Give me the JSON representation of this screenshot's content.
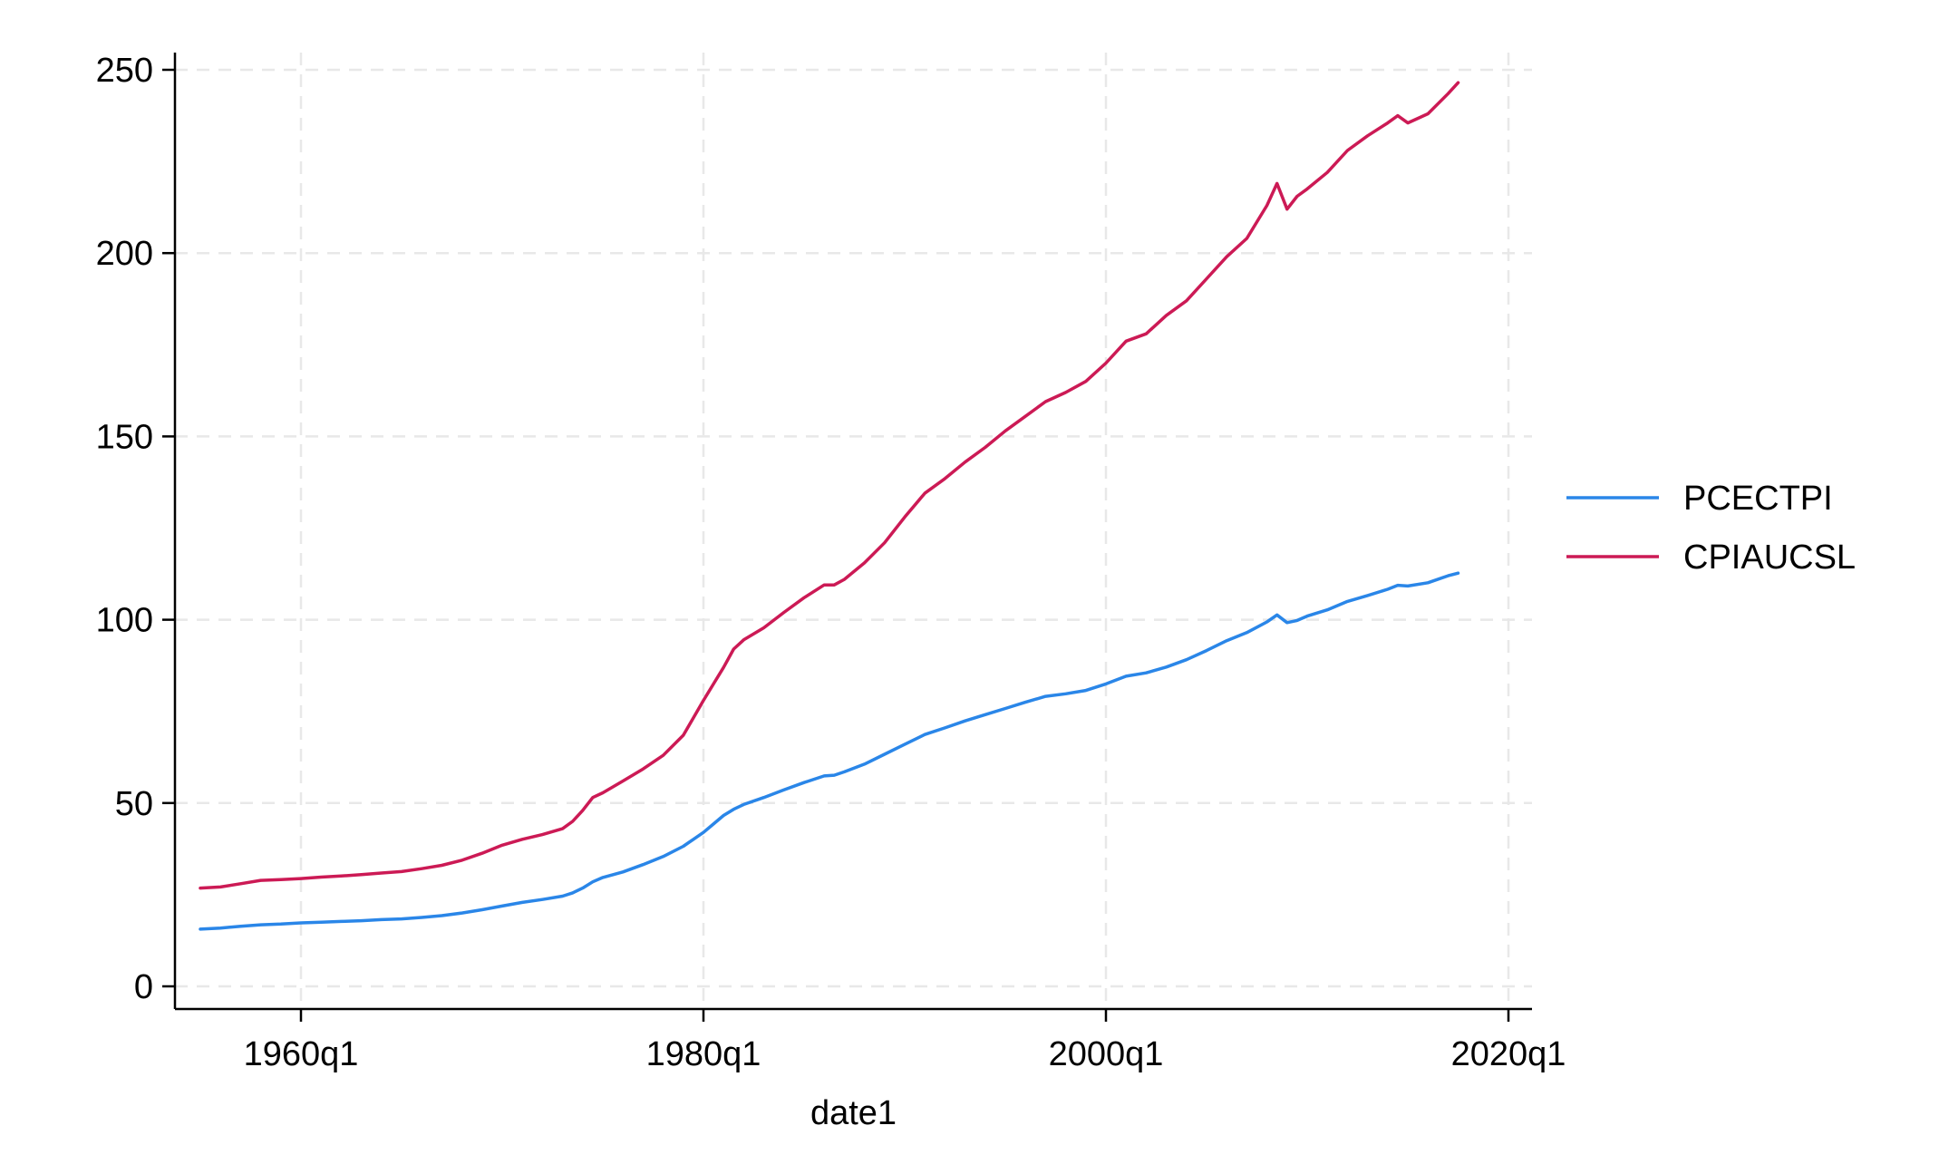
{
  "chart_data": {
    "type": "line",
    "title": "",
    "xlabel": "date1",
    "ylabel": "",
    "x_unit": "quarter",
    "xlim": [
      "1955q1",
      "2020q3"
    ],
    "ylim": [
      0,
      255
    ],
    "x_ticks": [
      {
        "label": "1960q1"
      },
      {
        "label": "1980q1"
      },
      {
        "label": "2000q1"
      },
      {
        "label": "2020q1"
      }
    ],
    "y_ticks": [
      0,
      50,
      100,
      150,
      200,
      250
    ],
    "grid": true,
    "legend": {
      "placement": "right"
    },
    "series": [
      {
        "name": "PCECTPI",
        "color": "#2a86e8",
        "points": [
          [
            "1955q1",
            15.6
          ],
          [
            "1956q1",
            15.9
          ],
          [
            "1957q1",
            16.4
          ],
          [
            "1958q1",
            16.8
          ],
          [
            "1959q1",
            17.0
          ],
          [
            "1960q1",
            17.3
          ],
          [
            "1961q1",
            17.5
          ],
          [
            "1962q1",
            17.7
          ],
          [
            "1963q1",
            17.9
          ],
          [
            "1964q1",
            18.2
          ],
          [
            "1965q1",
            18.4
          ],
          [
            "1966q1",
            18.8
          ],
          [
            "1967q1",
            19.3
          ],
          [
            "1968q1",
            20.0
          ],
          [
            "1969q1",
            20.9
          ],
          [
            "1970q1",
            21.9
          ],
          [
            "1971q1",
            22.9
          ],
          [
            "1972q1",
            23.7
          ],
          [
            "1973q1",
            24.6
          ],
          [
            "1973q3",
            25.5
          ],
          [
            "1974q1",
            26.8
          ],
          [
            "1974q3",
            28.5
          ],
          [
            "1975q1",
            29.7
          ],
          [
            "1976q1",
            31.2
          ],
          [
            "1977q1",
            33.2
          ],
          [
            "1978q1",
            35.4
          ],
          [
            "1979q1",
            38.2
          ],
          [
            "1980q1",
            42.0
          ],
          [
            "1980q3",
            44.3
          ],
          [
            "1981q1",
            46.6
          ],
          [
            "1981q3",
            48.3
          ],
          [
            "1982q1",
            49.6
          ],
          [
            "1983q1",
            51.5
          ],
          [
            "1984q1",
            53.6
          ],
          [
            "1985q1",
            55.6
          ],
          [
            "1986q1",
            57.4
          ],
          [
            "1986q3",
            57.6
          ],
          [
            "1987q1",
            58.5
          ],
          [
            "1988q1",
            60.6
          ],
          [
            "1989q1",
            63.3
          ],
          [
            "1990q1",
            66.0
          ],
          [
            "1991q1",
            68.7
          ],
          [
            "1992q1",
            70.5
          ],
          [
            "1993q1",
            72.4
          ],
          [
            "1994q1",
            74.1
          ],
          [
            "1995q1",
            75.8
          ],
          [
            "1996q1",
            77.5
          ],
          [
            "1997q1",
            79.1
          ],
          [
            "1998q1",
            79.8
          ],
          [
            "1999q1",
            80.7
          ],
          [
            "2000q1",
            82.5
          ],
          [
            "2001q1",
            84.6
          ],
          [
            "2002q1",
            85.5
          ],
          [
            "2003q1",
            87.1
          ],
          [
            "2004q1",
            89.1
          ],
          [
            "2005q1",
            91.6
          ],
          [
            "2006q1",
            94.3
          ],
          [
            "2007q1",
            96.5
          ],
          [
            "2008q1",
            99.4
          ],
          [
            "2008q3",
            101.3
          ],
          [
            "2009q1",
            99.2
          ],
          [
            "2009q3",
            99.8
          ],
          [
            "2010q1",
            101.0
          ],
          [
            "2011q1",
            102.7
          ],
          [
            "2012q1",
            105.0
          ],
          [
            "2013q1",
            106.6
          ],
          [
            "2014q1",
            108.3
          ],
          [
            "2014q3",
            109.4
          ],
          [
            "2015q1",
            109.2
          ],
          [
            "2016q1",
            110.1
          ],
          [
            "2017q1",
            112.0
          ],
          [
            "2017q3",
            112.7
          ]
        ]
      },
      {
        "name": "CPIAUCSL",
        "color": "#cc1a55",
        "points": [
          [
            "1955q1",
            26.8
          ],
          [
            "1956q1",
            27.1
          ],
          [
            "1957q1",
            28.0
          ],
          [
            "1958q1",
            28.9
          ],
          [
            "1959q1",
            29.1
          ],
          [
            "1960q1",
            29.4
          ],
          [
            "1961q1",
            29.8
          ],
          [
            "1962q1",
            30.1
          ],
          [
            "1963q1",
            30.5
          ],
          [
            "1964q1",
            30.9
          ],
          [
            "1965q1",
            31.3
          ],
          [
            "1966q1",
            32.1
          ],
          [
            "1967q1",
            33.0
          ],
          [
            "1968q1",
            34.4
          ],
          [
            "1969q1",
            36.3
          ],
          [
            "1970q1",
            38.5
          ],
          [
            "1971q1",
            40.1
          ],
          [
            "1972q1",
            41.4
          ],
          [
            "1973q1",
            43.0
          ],
          [
            "1973q3",
            45.0
          ],
          [
            "1974q1",
            48.0
          ],
          [
            "1974q3",
            51.5
          ],
          [
            "1975q1",
            52.8
          ],
          [
            "1976q1",
            56.0
          ],
          [
            "1977q1",
            59.3
          ],
          [
            "1978q1",
            63.0
          ],
          [
            "1979q1",
            68.5
          ],
          [
            "1980q1",
            78.0
          ],
          [
            "1980q3",
            82.5
          ],
          [
            "1981q1",
            87.0
          ],
          [
            "1981q3",
            92.0
          ],
          [
            "1982q1",
            94.5
          ],
          [
            "1983q1",
            97.8
          ],
          [
            "1984q1",
            102.0
          ],
          [
            "1985q1",
            106.0
          ],
          [
            "1986q1",
            109.5
          ],
          [
            "1986q3",
            109.5
          ],
          [
            "1987q1",
            111.0
          ],
          [
            "1988q1",
            115.5
          ],
          [
            "1989q1",
            121.0
          ],
          [
            "1990q1",
            128.0
          ],
          [
            "1991q1",
            134.5
          ],
          [
            "1992q1",
            138.5
          ],
          [
            "1993q1",
            143.0
          ],
          [
            "1994q1",
            147.0
          ],
          [
            "1995q1",
            151.5
          ],
          [
            "1996q1",
            155.5
          ],
          [
            "1997q1",
            159.5
          ],
          [
            "1998q1",
            162.0
          ],
          [
            "1999q1",
            165.0
          ],
          [
            "2000q1",
            170.0
          ],
          [
            "2001q1",
            176.0
          ],
          [
            "2002q1",
            178.0
          ],
          [
            "2003q1",
            183.0
          ],
          [
            "2004q1",
            187.0
          ],
          [
            "2005q1",
            193.0
          ],
          [
            "2006q1",
            199.0
          ],
          [
            "2007q1",
            204.0
          ],
          [
            "2008q1",
            213.0
          ],
          [
            "2008q3",
            219.0
          ],
          [
            "2009q1",
            212.0
          ],
          [
            "2009q3",
            215.5
          ],
          [
            "2010q1",
            217.5
          ],
          [
            "2011q1",
            222.0
          ],
          [
            "2012q1",
            228.0
          ],
          [
            "2013q1",
            232.0
          ],
          [
            "2014q1",
            235.5
          ],
          [
            "2014q3",
            237.5
          ],
          [
            "2015q1",
            235.5
          ],
          [
            "2016q1",
            238.0
          ],
          [
            "2017q1",
            243.5
          ],
          [
            "2017q3",
            246.5
          ]
        ]
      }
    ]
  }
}
